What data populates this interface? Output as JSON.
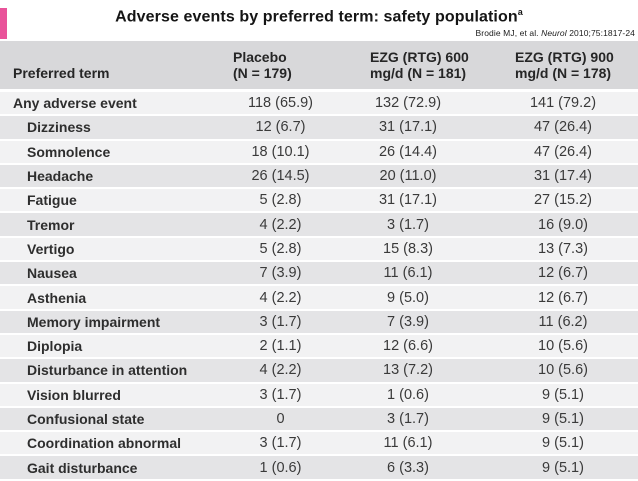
{
  "slide": {
    "title": "Adverse events by preferred term: safety population",
    "title_footnote_marker": "a",
    "citation": {
      "prefix": "Brodie MJ, et al. ",
      "journal": "Neurol",
      "suffix": " 2010;75:1817-24"
    },
    "accent_color": "#e9539a"
  },
  "table": {
    "header": {
      "col1": "Preferred term",
      "col2_line1": "Placebo",
      "col2_line2": "(N = 179)",
      "col3_line1": "EZG (RTG) 600",
      "col3_line2": "mg/d (N = 181)",
      "col4_line1": "EZG (RTG) 900",
      "col4_line2": "mg/d (N = 178)"
    }
  },
  "chart_data": {
    "type": "table",
    "title": "Adverse events by preferred term: safety population",
    "columns": [
      "Preferred term",
      "Placebo (N = 179)",
      "EZG (RTG) 600 mg/d (N = 181)",
      "EZG (RTG) 900 mg/d (N = 178)"
    ],
    "rows": [
      [
        "Any adverse event",
        "118 (65.9)",
        "132 (72.9)",
        "141 (79.2)"
      ],
      [
        "Dizziness",
        "12 (6.7)",
        "31 (17.1)",
        "47 (26.4)"
      ],
      [
        "Somnolence",
        "18 (10.1)",
        "26 (14.4)",
        "47 (26.4)"
      ],
      [
        "Headache",
        "26 (14.5)",
        "20 (11.0)",
        "31 (17.4)"
      ],
      [
        "Fatigue",
        "5 (2.8)",
        "31 (17.1)",
        "27 (15.2)"
      ],
      [
        "Tremor",
        "4 (2.2)",
        "3 (1.7)",
        "16 (9.0)"
      ],
      [
        "Vertigo",
        "5 (2.8)",
        "15 (8.3)",
        "13 (7.3)"
      ],
      [
        "Nausea",
        "7 (3.9)",
        "11 (6.1)",
        "12 (6.7)"
      ],
      [
        "Asthenia",
        "4 (2.2)",
        "9 (5.0)",
        "12 (6.7)"
      ],
      [
        "Memory impairment",
        "3 (1.7)",
        "7 (3.9)",
        "11 (6.2)"
      ],
      [
        "Diplopia",
        "2 (1.1)",
        "12 (6.6)",
        "10 (5.6)"
      ],
      [
        "Disturbance in attention",
        "4 (2.2)",
        "13 (7.2)",
        "10 (5.6)"
      ],
      [
        "Vision blurred",
        "3 (1.7)",
        "1 (0.6)",
        "9 (5.1)"
      ],
      [
        "Confusional state",
        "0",
        "3 (1.7)",
        "9 (5.1)"
      ],
      [
        "Coordination abnormal",
        "3 (1.7)",
        "11 (6.1)",
        "9 (5.1)"
      ],
      [
        "Gait disturbance",
        "1 (0.6)",
        "6 (3.3)",
        "9 (5.1)"
      ]
    ],
    "row_striping": {
      "light": "#f2f2f3",
      "dark": "#e4e4e6",
      "header": "#d8d8da"
    },
    "notes": "Values are n (%). First row is top-level; remaining rows indented under it."
  }
}
